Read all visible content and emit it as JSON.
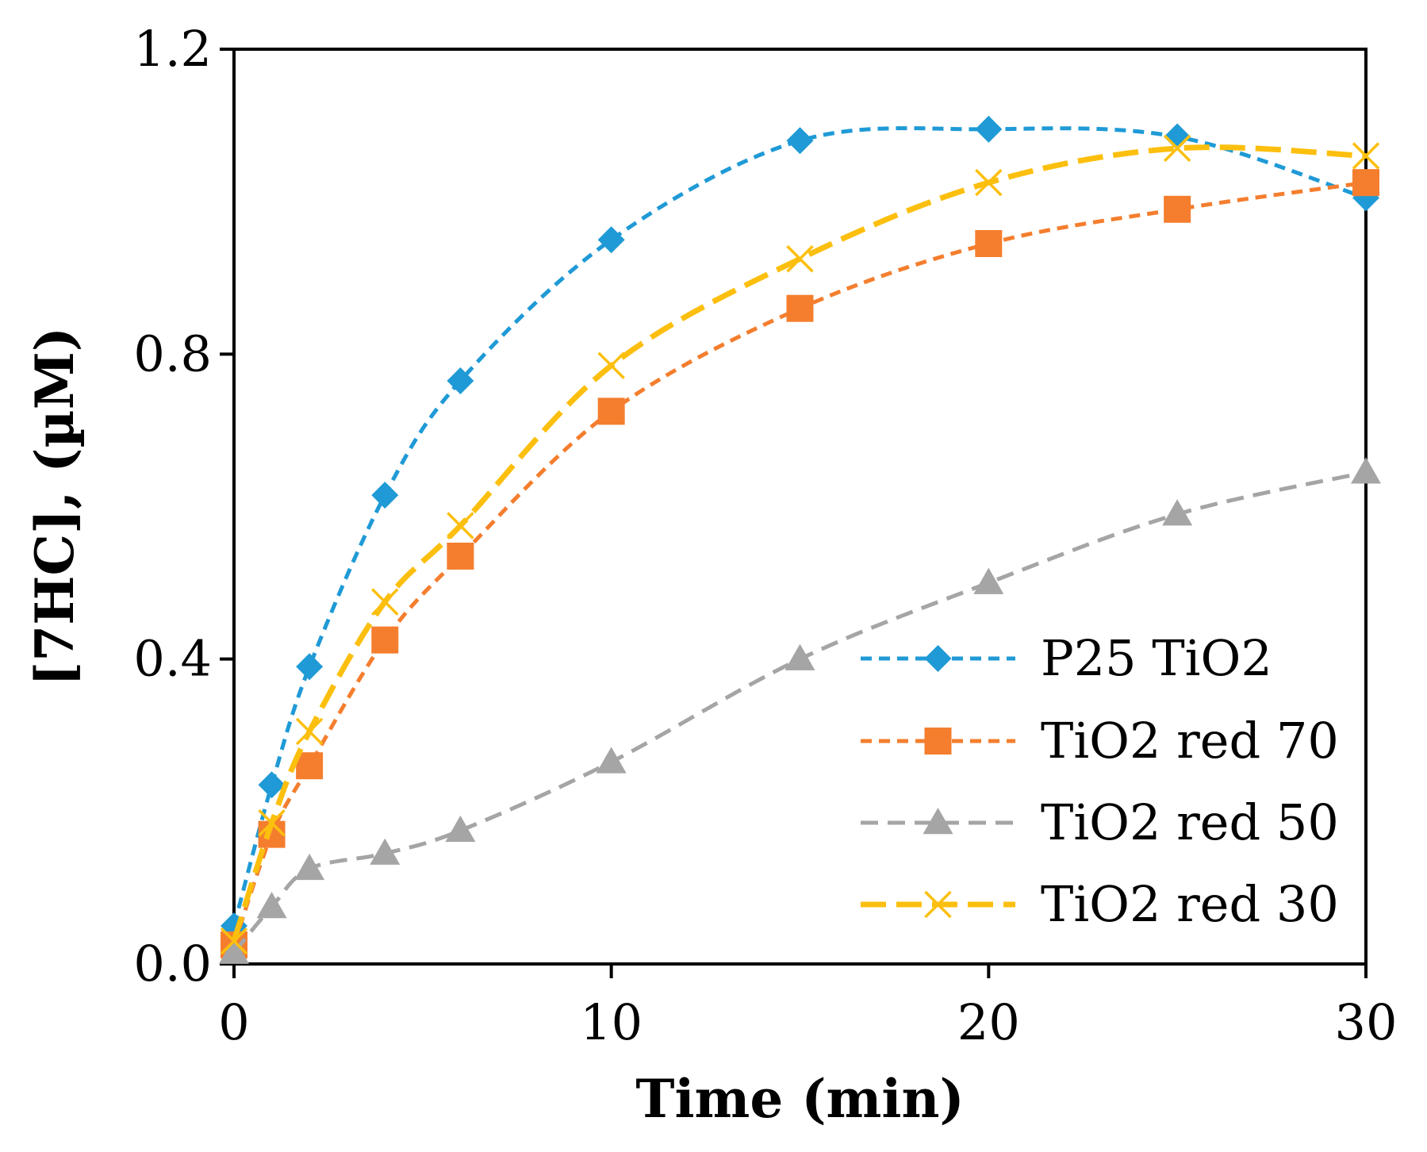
{
  "chart_data": {
    "type": "line",
    "title": "",
    "xlabel": "Time (min)",
    "ylabel": "[7HC], (µM)",
    "xlim": [
      0,
      30
    ],
    "ylim": [
      0,
      1.2
    ],
    "xticks": [
      0,
      10,
      20,
      30
    ],
    "xtick_labels": [
      "0",
      "10",
      "20",
      "30"
    ],
    "yticks": [
      0,
      0.4,
      0.8,
      1.2
    ],
    "ytick_labels": [
      "0.0",
      "0.4",
      "0.8",
      "1.2"
    ],
    "grid": false,
    "legend_position": "bottom-right",
    "x": [
      0,
      1,
      2,
      4,
      6,
      10,
      15,
      20,
      25,
      30
    ],
    "series": [
      {
        "name": "P25 TiO2",
        "marker": "diamond",
        "color": "#1f9ad6",
        "dash": "dotted",
        "values": [
          0.05,
          0.235,
          0.39,
          0.615,
          0.765,
          0.95,
          1.08,
          1.095,
          1.085,
          1.005
        ]
      },
      {
        "name": "TiO2 red 70",
        "marker": "square",
        "color": "#f47e2e",
        "dash": "dotted",
        "values": [
          0.025,
          0.17,
          0.26,
          0.425,
          0.535,
          0.725,
          0.86,
          0.945,
          0.99,
          1.025
        ]
      },
      {
        "name": "TiO2 red 50",
        "marker": "triangle",
        "color": "#a5a5a5",
        "dash": "dashed",
        "values": [
          0.015,
          0.075,
          0.125,
          0.145,
          0.175,
          0.265,
          0.4,
          0.5,
          0.59,
          0.645
        ]
      },
      {
        "name": "TiO2 red 30",
        "marker": "x",
        "color": "#fcbf0e",
        "dash": "long-dash",
        "values": [
          0.03,
          0.185,
          0.305,
          0.475,
          0.575,
          0.785,
          0.925,
          1.025,
          1.07,
          1.06
        ]
      }
    ]
  }
}
